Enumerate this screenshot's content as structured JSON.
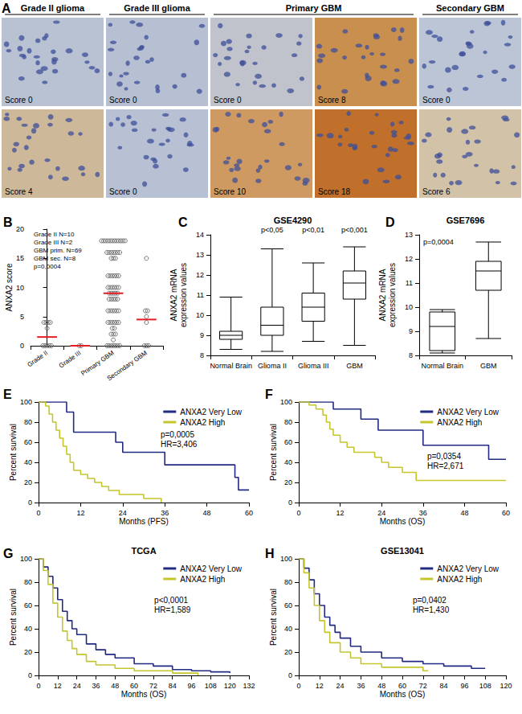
{
  "chart_data": [
    {
      "panel": "A",
      "type": "image_panel",
      "columns": [
        {
          "title": "Grade II glioma",
          "span": 1
        },
        {
          "title": "Grade III glioma",
          "span": 1
        },
        {
          "title": "Primary GBM",
          "span": 2
        },
        {
          "title": "Secondary GBM",
          "span": 1
        }
      ],
      "rows": [
        [
          {
            "label": "Score 0",
            "color": "#b9c2d3"
          },
          {
            "label": "Score 0",
            "color": "#b7c0d2"
          },
          {
            "label": "Score 0",
            "color": "#c0c3cc"
          },
          {
            "label": "Score 8",
            "color": "#c98f4f"
          },
          {
            "label": "Score 0",
            "color": "#bcc5d6"
          }
        ],
        [
          {
            "label": "Score 4",
            "color": "#cdb99a"
          },
          {
            "label": "Score 0",
            "color": "#b8c1d3"
          },
          {
            "label": "Score 10",
            "color": "#cf9a62"
          },
          {
            "label": "Score 18",
            "color": "#c0702a"
          },
          {
            "label": "Score 6",
            "color": "#d2c2a8"
          }
        ]
      ]
    },
    {
      "panel": "B",
      "type": "scatter",
      "y_label": "ANXA2 score",
      "categories": [
        "Grade II",
        "Grade III",
        "Primary GBM",
        "Secondary GBM"
      ],
      "values": [
        [
          0,
          0,
          0,
          0,
          0,
          3,
          4,
          4,
          4,
          4
        ],
        [
          0,
          0
        ],
        [
          18,
          18,
          18,
          18,
          18,
          18,
          18,
          18,
          18,
          18,
          18,
          18,
          16,
          16,
          16,
          16,
          16,
          16,
          16,
          15,
          15,
          15,
          12,
          12,
          12,
          12,
          12,
          12,
          10,
          10,
          10,
          10,
          10,
          10,
          9,
          9,
          9,
          9,
          9,
          8,
          8,
          8,
          8,
          8,
          6,
          6,
          6,
          6,
          6,
          6,
          4,
          4,
          4,
          4,
          4,
          4,
          3,
          3,
          2,
          2,
          2,
          1,
          0,
          0,
          0,
          0,
          0,
          0,
          0
        ],
        [
          0,
          0,
          0,
          4,
          5,
          6,
          6,
          15
        ]
      ],
      "medians": [
        1.5,
        0,
        9,
        4.5
      ],
      "color": "#555555",
      "median_color": "#e41e26",
      "legend_text": [
        "Grade II N=10",
        "Grade III N=2",
        "GBM prim. N=69",
        "GBM sec. N=8"
      ],
      "annotations": [
        "p=0,0004"
      ],
      "ylim": [
        0,
        20
      ],
      "yticks": [
        0,
        5,
        10,
        15,
        20
      ]
    },
    {
      "panel": "C",
      "type": "boxplot",
      "title": "GSE4290",
      "y_label": "ANXA2 mRNA\nexpression values",
      "categories": [
        "Normal Brain",
        "Glioma II",
        "Glioma III",
        "GBM"
      ],
      "boxes": [
        [
          8.3,
          8.8,
          9.0,
          9.2,
          10.9
        ],
        [
          8.2,
          9.0,
          9.5,
          10.4,
          13.3
        ],
        [
          8.7,
          9.7,
          10.4,
          11.1,
          12.6
        ],
        [
          8.5,
          10.8,
          11.6,
          12.2,
          13.4
        ]
      ],
      "category_annotations": [
        null,
        "p<0,05",
        "p<0,01",
        "p<0,001"
      ],
      "ylim": [
        8,
        14
      ],
      "yticks": [
        8,
        9,
        10,
        11,
        12,
        13,
        14
      ]
    },
    {
      "panel": "D",
      "type": "boxplot",
      "title": "GSE7696",
      "y_label": "ANXA2 mRNA\nexpression values",
      "categories": [
        "Normal Brain",
        "GBM"
      ],
      "boxes": [
        [
          8.1,
          8.2,
          9.2,
          9.8,
          9.9
        ],
        [
          8.7,
          10.7,
          11.5,
          11.9,
          12.7
        ]
      ],
      "annotations": [
        "p=0,0004"
      ],
      "ylim": [
        8,
        13
      ],
      "yticks": [
        8,
        9,
        10,
        11,
        12,
        13
      ]
    },
    {
      "panel": "E",
      "type": "line",
      "line_style": "step",
      "legend": "top-right",
      "x_label": "Months (PFS)",
      "y_label": "Percent survival",
      "xlim": [
        0,
        60
      ],
      "xticks": [
        0,
        12,
        24,
        36,
        48,
        60
      ],
      "ylim": [
        0,
        100
      ],
      "yticks": [
        0,
        20,
        40,
        60,
        80,
        100
      ],
      "annotations": [
        "p=0,0005",
        "HR=3,406"
      ],
      "series": [
        {
          "name": "ANXA2 Very Low",
          "color": "#232a82",
          "x": [
            0,
            8,
            10,
            22,
            24,
            36,
            56,
            57,
            60
          ],
          "values": [
            100,
            90,
            70,
            60,
            50,
            37.5,
            25,
            12.5,
            12.5
          ]
        },
        {
          "name": "ANXA2 High",
          "color": "#c5c62d",
          "x": [
            0,
            2,
            3,
            4,
            5,
            6,
            7,
            8,
            9,
            10,
            12,
            14,
            16,
            18,
            20,
            23,
            30,
            35
          ],
          "values": [
            100,
            96,
            88,
            80,
            72,
            64,
            56,
            48,
            40,
            32,
            28,
            24,
            20,
            16,
            12,
            8,
            4,
            0
          ]
        }
      ]
    },
    {
      "panel": "F",
      "type": "line",
      "line_style": "step",
      "legend": "top-right",
      "x_label": "Months (OS)",
      "y_label": "Percent survival",
      "xlim": [
        0,
        60
      ],
      "xticks": [
        0,
        12,
        24,
        36,
        48,
        60
      ],
      "ylim": [
        0,
        100
      ],
      "yticks": [
        0,
        20,
        40,
        60,
        80,
        100
      ],
      "annotations": [
        "p=0,0354",
        "HR=2,671"
      ],
      "series": [
        {
          "name": "ANXA2 Very Low",
          "color": "#232a82",
          "x": [
            0,
            10,
            18,
            23,
            36,
            55,
            60
          ],
          "values": [
            100,
            93,
            83,
            72,
            57,
            43,
            43
          ]
        },
        {
          "name": "ANXA2 High",
          "color": "#c5c62d",
          "x": [
            0,
            3,
            5,
            7,
            8,
            9,
            10,
            12,
            14,
            16,
            22,
            24,
            26,
            30,
            34,
            60
          ],
          "values": [
            100,
            97,
            93,
            87,
            80,
            73,
            67,
            60,
            55,
            50,
            45,
            40,
            35,
            30,
            22,
            22
          ]
        }
      ]
    },
    {
      "panel": "G",
      "type": "line",
      "line_style": "step",
      "legend": "top-right",
      "title": "TCGA",
      "x_label": "Months (OS)",
      "y_label": "Percent survival",
      "xlim": [
        0,
        132
      ],
      "xticks": [
        0,
        12,
        24,
        36,
        48,
        60,
        72,
        84,
        96,
        108,
        120,
        132
      ],
      "ylim": [
        0,
        100
      ],
      "yticks": [
        0,
        20,
        40,
        60,
        80,
        100
      ],
      "annotations": [
        "p<0,0001",
        "HR=1,589"
      ],
      "series": [
        {
          "name": "ANXA2 Very Low",
          "color": "#232a82",
          "x": [
            0,
            3,
            6,
            9,
            12,
            15,
            18,
            21,
            24,
            30,
            36,
            42,
            48,
            60,
            72,
            84,
            96,
            108,
            120
          ],
          "values": [
            100,
            93,
            85,
            75,
            65,
            55,
            47,
            40,
            35,
            27,
            22,
            18,
            15,
            10,
            8,
            5,
            4,
            3,
            2
          ]
        },
        {
          "name": "ANXA2 High",
          "color": "#c5c62d",
          "x": [
            0,
            3,
            6,
            9,
            12,
            15,
            18,
            21,
            24,
            30,
            36,
            48,
            60,
            84,
            100
          ],
          "values": [
            100,
            90,
            78,
            62,
            50,
            38,
            30,
            23,
            18,
            12,
            9,
            6,
            4,
            2,
            0
          ]
        }
      ]
    },
    {
      "panel": "H",
      "type": "line",
      "line_style": "step",
      "legend": "top-right",
      "title": "GSE13041",
      "x_label": "Months (OS)",
      "y_label": "Percent survival",
      "xlim": [
        0,
        120
      ],
      "xticks": [
        0,
        12,
        24,
        36,
        48,
        60,
        72,
        84,
        96,
        108,
        120
      ],
      "ylim": [
        0,
        100
      ],
      "yticks": [
        0,
        20,
        40,
        60,
        80,
        100
      ],
      "annotations": [
        "p=0,0402",
        "HR=1,430"
      ],
      "series": [
        {
          "name": "ANXA2 Very Low",
          "color": "#232a82",
          "x": [
            0,
            3,
            6,
            9,
            12,
            15,
            18,
            21,
            24,
            30,
            36,
            48,
            60,
            72,
            84,
            100,
            108
          ],
          "values": [
            100,
            92,
            82,
            70,
            60,
            50,
            43,
            37,
            32,
            25,
            20,
            15,
            12,
            10,
            8,
            6,
            6
          ]
        },
        {
          "name": "ANXA2 High",
          "color": "#c5c62d",
          "x": [
            0,
            3,
            6,
            9,
            12,
            15,
            18,
            24,
            30,
            36,
            48,
            72,
            75
          ],
          "values": [
            100,
            88,
            75,
            60,
            47,
            37,
            28,
            20,
            15,
            10,
            7,
            4,
            4
          ]
        }
      ]
    }
  ]
}
